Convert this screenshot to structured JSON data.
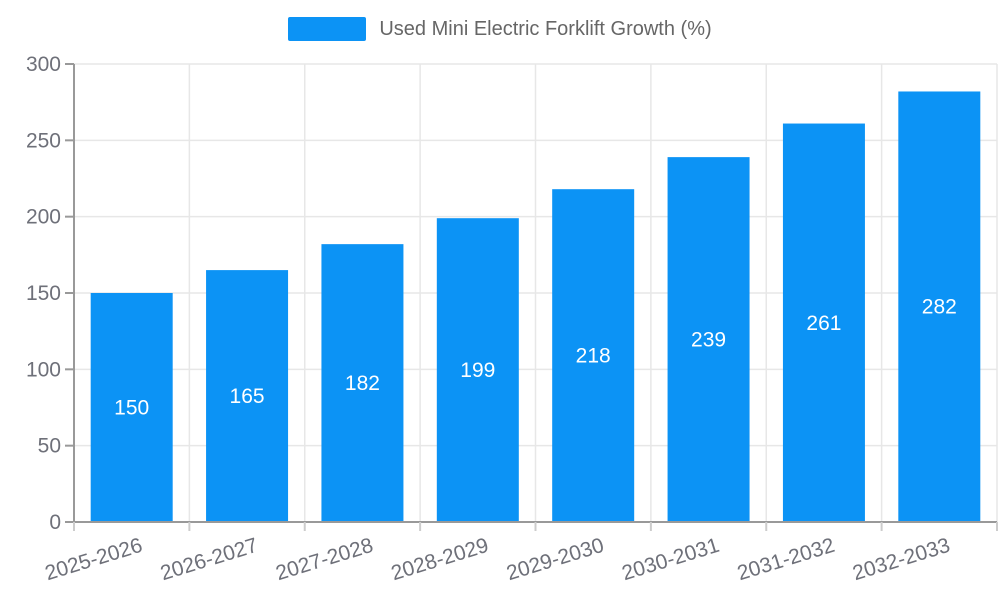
{
  "legend": {
    "label": "Used Mini Electric Forklift Growth (%)"
  },
  "colors": {
    "bar": "#0C93F5",
    "grid": "#E7E7E7",
    "axis": "#999999",
    "x_tick": "#CCCCCC",
    "axis_label_text": "#6E7079",
    "legend_text": "#666666",
    "bar_label_text": "#FFFFFF"
  },
  "chart_data": {
    "type": "bar",
    "title": "",
    "xlabel": "",
    "ylabel": "",
    "legend_entries": [
      "Used Mini Electric Forklift Growth (%)"
    ],
    "legend_position": "top-center",
    "grid": true,
    "categories": [
      "2025-2026",
      "2026-2027",
      "2027-2028",
      "2028-2029",
      "2029-2030",
      "2030-2031",
      "2031-2032",
      "2032-2033"
    ],
    "values": [
      150,
      165,
      182,
      199,
      218,
      239,
      261,
      282
    ],
    "yticks": [
      0,
      50,
      100,
      150,
      200,
      250,
      300
    ],
    "ylim": [
      0,
      300
    ],
    "bar_label_position": "inside-center",
    "x_label_rotation_deg": -17
  }
}
